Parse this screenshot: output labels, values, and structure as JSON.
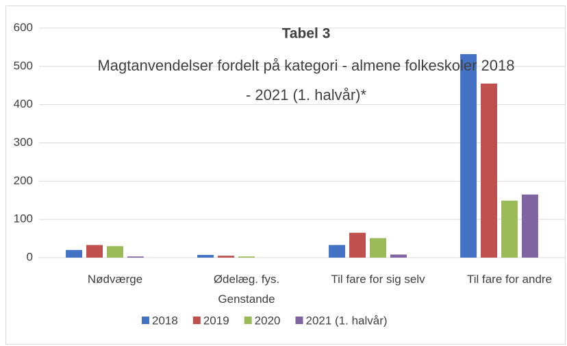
{
  "chart_data": {
    "type": "bar",
    "title": "Tabel 3",
    "subtitle": "Magtanvendelser fordelt på kategori - almene folkeskoler 2018 - 2021 (1. halvår)*",
    "categories": [
      "Nødværge",
      "Ødelæg. fys.\nGenstande",
      "Til fare for sig selv",
      "Til fare for andre"
    ],
    "series": [
      {
        "name": "2018",
        "color": "#4472c4",
        "values": [
          20,
          7,
          33,
          532
        ]
      },
      {
        "name": "2019",
        "color": "#c0504d",
        "values": [
          33,
          5,
          65,
          455
        ]
      },
      {
        "name": "2020",
        "color": "#9bbb59",
        "values": [
          30,
          3,
          51,
          149
        ]
      },
      {
        "name": "2021 (1. halvår)",
        "color": "#8064a2",
        "values": [
          3,
          0,
          8,
          165
        ]
      }
    ],
    "ylim": [
      0,
      600
    ],
    "yticks": [
      0,
      100,
      200,
      300,
      400,
      500,
      600
    ],
    "grid": true,
    "legend": "bottom"
  }
}
